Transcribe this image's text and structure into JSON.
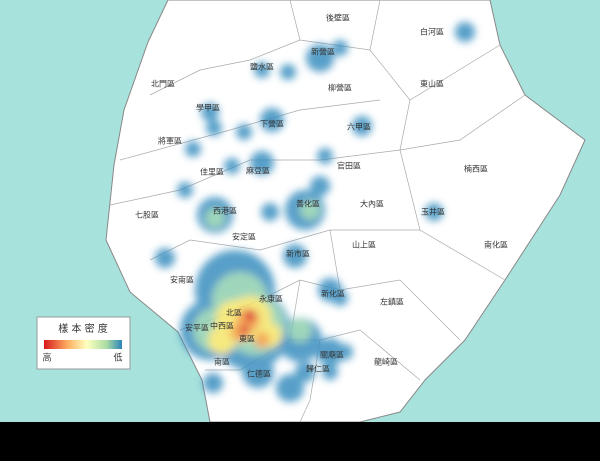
{
  "map": {
    "districts": [
      "後壁區",
      "白河區",
      "新營區",
      "鹽水區",
      "北門區",
      "柳營區",
      "東山區",
      "學甲區",
      "下營區",
      "六甲區",
      "將軍區",
      "官田區",
      "佳里區",
      "麻豆區",
      "楠西區",
      "七股區",
      "西港區",
      "善化區",
      "大內區",
      "玉井區",
      "安定區",
      "山上區",
      "南化區",
      "新市區",
      "安南區",
      "新化區",
      "永康區",
      "左鎮區",
      "北區",
      "安平區",
      "中西區",
      "東區",
      "南區",
      "仁德區",
      "歸仁區",
      "關廟區",
      "龍崎區"
    ]
  },
  "legend": {
    "title": "樣 本 密 度",
    "high": "高",
    "low": "低"
  }
}
